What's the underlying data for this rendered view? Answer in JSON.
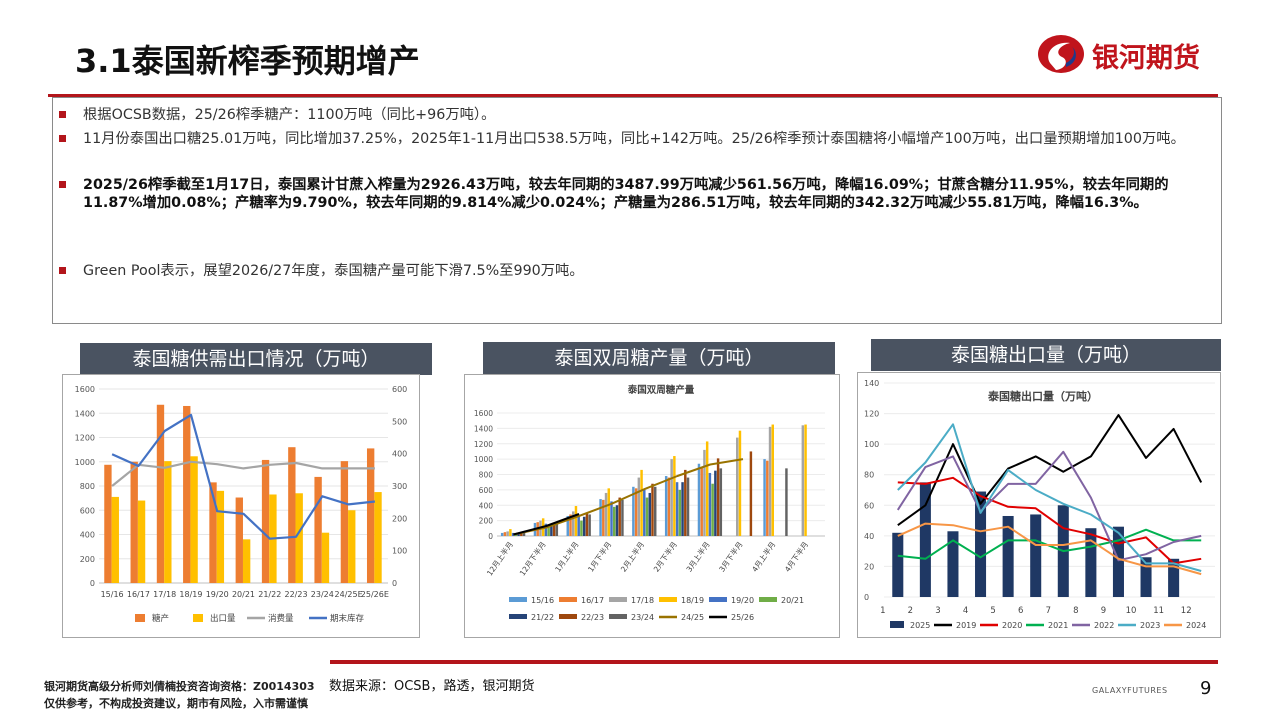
{
  "slide": {
    "title": "3.1泰国新榨季预期增产",
    "brand": "银河期货",
    "brand_en": "GALAXYFUTURES",
    "page_number": "9",
    "source": "数据来源：OCSB，路透，银河期货",
    "footer_line1": "银河期货高级分析师刘倩楠投资咨询资格：Z0014303",
    "footer_line2": "仅供参考，不构成投资建议，期市有风险，入市需谨慎",
    "accent": "#b3151b"
  },
  "bullets": [
    {
      "text": "根据OCSB数据，25/26榨季糖产：1100万吨（同比+96万吨）。"
    },
    {
      "text": "11月份泰国出口糖25.01万吨，同比增加37.25%，2025年1-11月出口538.5万吨，同比+142万吨。25/26榨季预计泰国糖将小幅增产100万吨，出口量预期增加100万吨。"
    },
    {
      "text": "2025/26榨季截至1月17日，泰国累计甘蔗入榨量为2926.43万吨，较去年同期的3487.99万吨减少561.56万吨，降幅16.09%；甘蔗含糖分11.95%，较去年同期的11.87%增加0.08%；产糖率为9.790%，较去年同期的9.814%减少0.024%；产糖量为286.51万吨，较去年同期的342.32万吨减少55.81万吨，降幅16.3%。"
    },
    {
      "text": "Green Pool表示，展望2026/27年度，泰国糖产量可能下滑7.5%至990万吨。"
    }
  ],
  "chart_data": [
    {
      "type": "bar",
      "panel_title": "泰国糖供需出口情况（万吨）",
      "categories": [
        "15/16",
        "16/17",
        "17/18",
        "18/19",
        "19/20",
        "20/21",
        "21/22",
        "22/23",
        "23/24",
        "24/25E",
        "25/26E"
      ],
      "y_left": {
        "min": 0,
        "max": 1600,
        "ticks": [
          0,
          200,
          400,
          600,
          800,
          1000,
          1200,
          1400,
          1600
        ]
      },
      "y_right": {
        "min": 0,
        "max": 600,
        "ticks": [
          0,
          100,
          200,
          300,
          400,
          500,
          600
        ]
      },
      "series": [
        {
          "name": "糖产",
          "kind": "bar",
          "axis": "left",
          "color": "#ed7d31",
          "values": [
            975,
            1000,
            1470,
            1460,
            830,
            705,
            1015,
            1120,
            875,
            1005,
            1110
          ]
        },
        {
          "name": "出口量",
          "kind": "bar",
          "axis": "left",
          "color": "#ffc000",
          "values": [
            710,
            680,
            1005,
            1045,
            760,
            360,
            730,
            740,
            415,
            600,
            750
          ]
        },
        {
          "name": "消费量",
          "kind": "line",
          "axis": "left",
          "color": "#a5a5a5",
          "values": [
            800,
            975,
            950,
            1000,
            980,
            945,
            975,
            990,
            945,
            945,
            945
          ]
        },
        {
          "name": "期末库存",
          "kind": "line",
          "axis": "right",
          "color": "#4472c4",
          "values": [
            398,
            362,
            470,
            520,
            222,
            214,
            137,
            143,
            268,
            243,
            252
          ]
        }
      ]
    },
    {
      "type": "bar",
      "panel_title": "泰国双周糖产量（万吨）",
      "title": "泰国双周糖产量",
      "categories": [
        "12月上半月",
        "12月下半月",
        "1月上半月",
        "1月下半月",
        "2月上半月",
        "2月下半月",
        "3月上半月",
        "3月下半月",
        "4月上半月",
        "4月下半月"
      ],
      "ylim": [
        0,
        1600
      ],
      "y_ticks": [
        0,
        200,
        400,
        600,
        800,
        1000,
        1200,
        1400,
        1600
      ],
      "series": [
        {
          "name": "15/16",
          "color": "#5b9bd5",
          "values": [
            40,
            170,
            260,
            480,
            640,
            780,
            940,
            null,
            1000,
            null
          ]
        },
        {
          "name": "16/17",
          "color": "#ed7d31",
          "values": [
            50,
            180,
            280,
            470,
            620,
            760,
            890,
            null,
            980,
            null
          ]
        },
        {
          "name": "17/18",
          "color": "#a5a5a5",
          "values": [
            60,
            200,
            320,
            560,
            760,
            1000,
            1120,
            1280,
            1420,
            1440
          ]
        },
        {
          "name": "18/19",
          "color": "#ffc000",
          "values": [
            90,
            230,
            390,
            620,
            860,
            1040,
            1230,
            1370,
            1450,
            1450
          ]
        },
        {
          "name": "19/20",
          "color": "#4472c4",
          "values": [
            40,
            160,
            280,
            450,
            600,
            700,
            820,
            null,
            null,
            null
          ]
        },
        {
          "name": "20/21",
          "color": "#70ad47",
          "values": [
            30,
            120,
            200,
            380,
            500,
            600,
            680,
            null,
            null,
            null
          ]
        },
        {
          "name": "21/22",
          "color": "#264478",
          "values": [
            40,
            140,
            250,
            400,
            560,
            700,
            850,
            null,
            null,
            null
          ]
        },
        {
          "name": "22/23",
          "color": "#9e480e",
          "values": [
            50,
            170,
            300,
            500,
            680,
            860,
            1010,
            1100,
            null,
            null
          ]
        },
        {
          "name": "23/24",
          "color": "#636363",
          "values": [
            40,
            160,
            280,
            470,
            640,
            760,
            880,
            null,
            880,
            null
          ]
        },
        {
          "name": "24/25",
          "color": "#997300",
          "kind": "line",
          "values": [
            20,
            110,
            260,
            420,
            610,
            780,
            930,
            1000,
            null,
            null
          ]
        },
        {
          "name": "25/26",
          "color": "#000000",
          "kind": "line",
          "values": [
            20,
            130,
            286,
            null,
            null,
            null,
            null,
            null,
            null,
            null
          ]
        }
      ]
    },
    {
      "type": "bar",
      "panel_title": "泰国糖出口量（万吨）",
      "title": "泰国糖出口量（万吨）",
      "categories": [
        "1",
        "2",
        "3",
        "4",
        "5",
        "6",
        "7",
        "8",
        "9",
        "10",
        "11",
        "12"
      ],
      "ylim": [
        0,
        140
      ],
      "y_ticks": [
        0,
        20,
        40,
        60,
        80,
        100,
        120,
        140
      ],
      "series": [
        {
          "name": "2025",
          "kind": "bar",
          "color": "#1f3864",
          "values": [
            42,
            75,
            43,
            69,
            53,
            54,
            60,
            45,
            46,
            26,
            25,
            null
          ]
        },
        {
          "name": "2019",
          "kind": "line",
          "color": "#000000",
          "values": [
            47,
            60,
            100,
            61,
            84,
            92,
            82,
            92,
            119,
            91,
            110,
            75
          ]
        },
        {
          "name": "2020",
          "kind": "line",
          "color": "#e00000",
          "values": [
            75,
            74,
            78,
            66,
            59,
            58,
            45,
            41,
            35,
            39,
            22,
            25
          ]
        },
        {
          "name": "2021",
          "kind": "line",
          "color": "#00b050",
          "values": [
            27,
            25,
            37,
            26,
            37,
            37,
            30,
            33,
            37,
            44,
            37,
            37
          ]
        },
        {
          "name": "2022",
          "kind": "line",
          "color": "#8064a2",
          "values": [
            57,
            85,
            92,
            56,
            74,
            74,
            95,
            65,
            24,
            28,
            36,
            40
          ]
        },
        {
          "name": "2023",
          "kind": "line",
          "color": "#4bacc6",
          "values": [
            70,
            88,
            113,
            55,
            83,
            70,
            61,
            54,
            42,
            22,
            22,
            17
          ]
        },
        {
          "name": "2024",
          "kind": "line",
          "color": "#f79646",
          "values": [
            40,
            48,
            47,
            43,
            46,
            34,
            34,
            37,
            25,
            20,
            20,
            15
          ]
        }
      ]
    }
  ]
}
